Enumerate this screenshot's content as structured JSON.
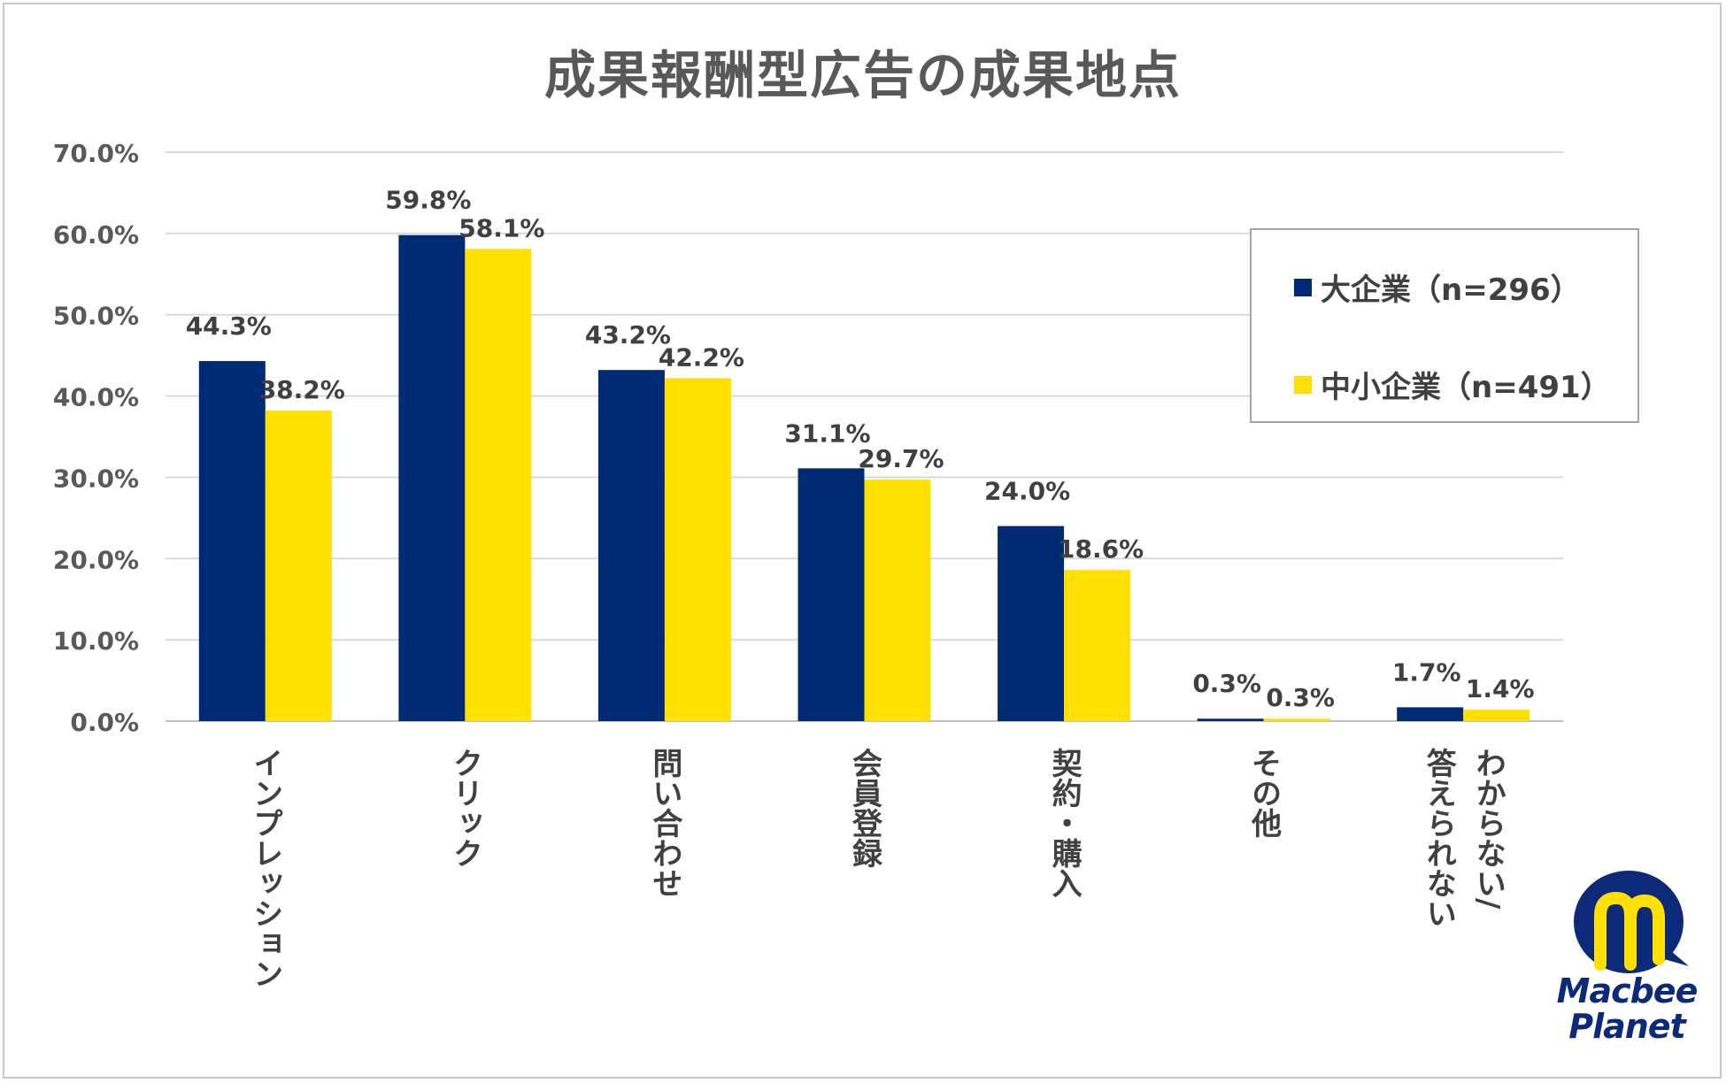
{
  "chart_data": {
    "type": "bar",
    "title": "成果報酬型広告の成果地点",
    "categories": [
      [
        "インプレッション"
      ],
      [
        "クリック"
      ],
      [
        "問い合わせ"
      ],
      [
        "会員登録"
      ],
      [
        "契約・購入"
      ],
      [
        "その他"
      ],
      [
        "わからない/",
        "答えられない"
      ]
    ],
    "series": [
      {
        "name": "大企業（n=296）",
        "color": "#002a73",
        "values": [
          44.3,
          59.8,
          43.2,
          31.1,
          24.0,
          0.3,
          1.7
        ],
        "labels": [
          "44.3%",
          "59.8%",
          "43.2%",
          "31.1%",
          "24.0%",
          "0.3%",
          "1.7%"
        ]
      },
      {
        "name": "中小企業（n=491）",
        "color": "#ffe000",
        "values": [
          38.2,
          58.1,
          42.2,
          29.7,
          18.6,
          0.3,
          1.4
        ],
        "labels": [
          "38.2%",
          "58.1%",
          "42.2%",
          "29.7%",
          "18.6%",
          "0.3%",
          "1.4%"
        ]
      }
    ],
    "ylim": [
      0,
      70
    ],
    "yticks": [
      "0.0%",
      "10.0%",
      "20.0%",
      "30.0%",
      "40.0%",
      "50.0%",
      "60.0%",
      "70.0%"
    ],
    "grid": true,
    "legend_position": "top-right"
  },
  "logo": {
    "name": "macbee-planet-logo",
    "text_line1": "Macbee",
    "text_line2": "Planet",
    "circle_color": "#0d2a7a",
    "accent_color": "#ffe000"
  }
}
